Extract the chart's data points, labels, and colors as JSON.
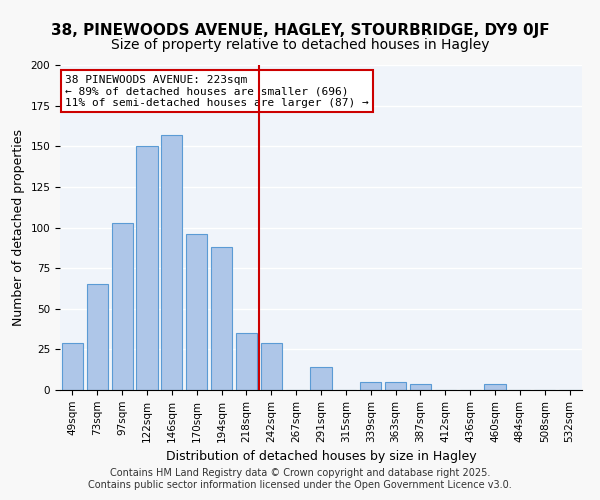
{
  "title1": "38, PINEWOODS AVENUE, HAGLEY, STOURBRIDGE, DY9 0JF",
  "title2": "Size of property relative to detached houses in Hagley",
  "xlabel": "Distribution of detached houses by size in Hagley",
  "ylabel": "Number of detached properties",
  "categories": [
    "49sqm",
    "73sqm",
    "97sqm",
    "122sqm",
    "146sqm",
    "170sqm",
    "194sqm",
    "218sqm",
    "242sqm",
    "267sqm",
    "291sqm",
    "315sqm",
    "339sqm",
    "363sqm",
    "387sqm",
    "412sqm",
    "436sqm",
    "460sqm",
    "484sqm",
    "508sqm",
    "532sqm"
  ],
  "values": [
    29,
    65,
    103,
    150,
    157,
    96,
    88,
    35,
    29,
    0,
    14,
    0,
    5,
    5,
    4,
    0,
    0,
    4,
    0,
    0,
    0
  ],
  "bar_color": "#aec6e8",
  "bar_edge_color": "#5b9bd5",
  "background_color": "#f0f4fa",
  "grid_color": "#ffffff",
  "vline_x": 7.5,
  "vline_color": "#cc0000",
  "annotation_title": "38 PINEWOODS AVENUE: 223sqm",
  "annotation_line1": "← 89% of detached houses are smaller (696)",
  "annotation_line2": "11% of semi-detached houses are larger (87) →",
  "annotation_box_color": "#ffffff",
  "annotation_box_edge": "#cc0000",
  "footer1": "Contains HM Land Registry data © Crown copyright and database right 2025.",
  "footer2": "Contains public sector information licensed under the Open Government Licence v3.0.",
  "ylim": [
    0,
    200
  ],
  "title1_fontsize": 11,
  "title2_fontsize": 10,
  "ylabel_fontsize": 9,
  "xlabel_fontsize": 9,
  "tick_fontsize": 7.5,
  "annotation_fontsize": 8,
  "footer_fontsize": 7
}
